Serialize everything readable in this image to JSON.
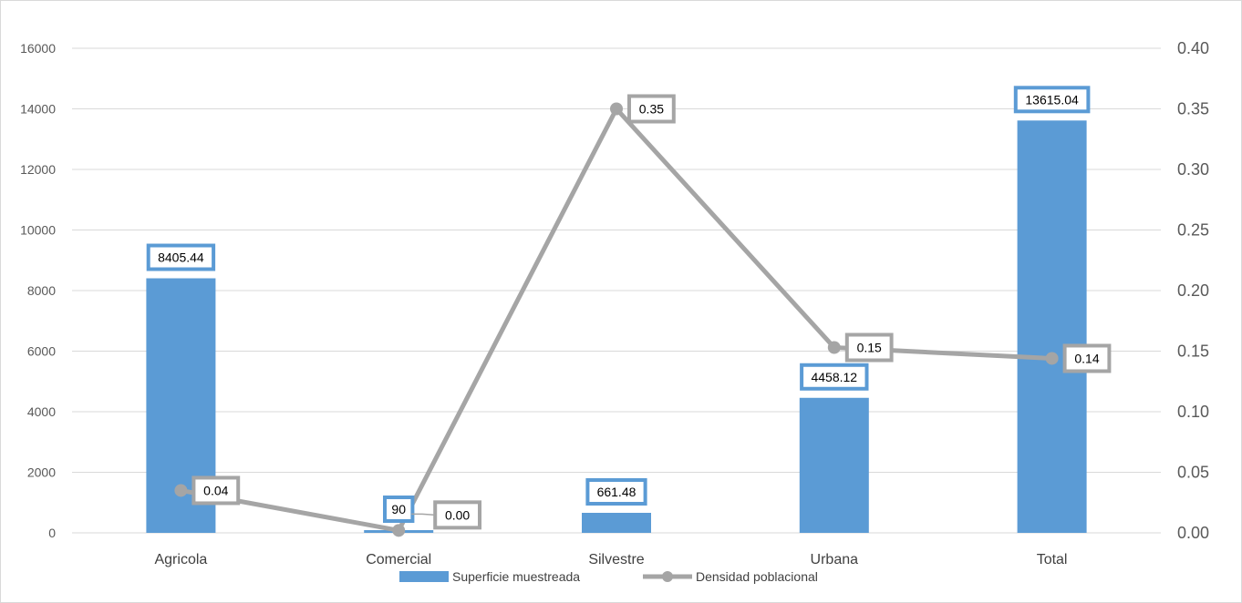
{
  "chart_data": {
    "type": "bar+line",
    "title": "",
    "categories": [
      "Agricola",
      "Comercial",
      "Silvestre",
      "Urbana",
      "Total"
    ],
    "series": [
      {
        "name": "Superficie muestreada",
        "type": "bar",
        "axis": "left",
        "color": "#5b9bd5",
        "values": [
          8405.44,
          90,
          661.48,
          4458.12,
          13615.04
        ],
        "labels": [
          "8405.44",
          "90",
          "661.48",
          "4458.12",
          "13615.04"
        ]
      },
      {
        "name": "Densidad poblacional",
        "type": "line",
        "axis": "right",
        "color": "#a5a5a5",
        "values": [
          0.035,
          0.002,
          0.35,
          0.153,
          0.144
        ],
        "labels": [
          "0.04",
          "0.00",
          "0.35",
          "0.15",
          "0.14"
        ]
      }
    ],
    "y_left": {
      "range": [
        0,
        16000
      ],
      "ticks": [
        "0",
        "2000",
        "4000",
        "6000",
        "8000",
        "10000",
        "12000",
        "14000",
        "16000"
      ]
    },
    "y_right": {
      "range": [
        0,
        0.4
      ],
      "ticks": [
        "0.00",
        "0.05",
        "0.10",
        "0.15",
        "0.20",
        "0.25",
        "0.30",
        "0.35",
        "0.40"
      ]
    },
    "grid": true,
    "legend": "bottom"
  }
}
